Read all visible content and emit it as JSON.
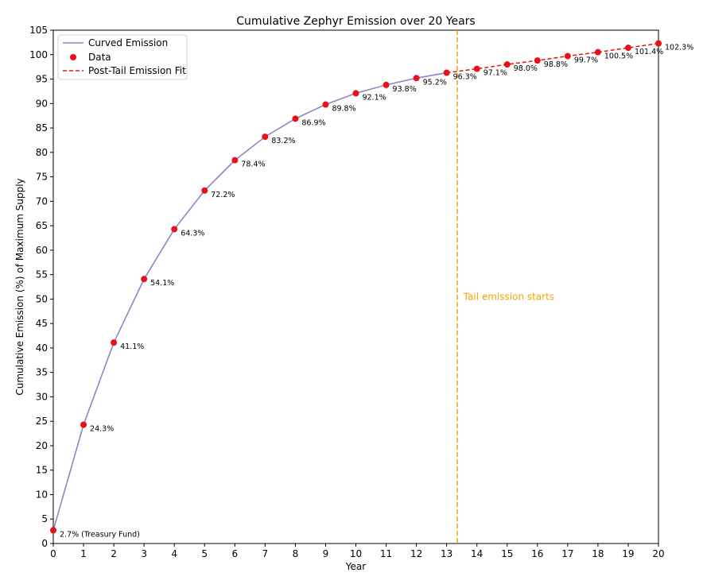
{
  "chart_data": {
    "type": "line",
    "title": "Cumulative Zephyr Emission over 20 Years",
    "xlabel": "Year",
    "ylabel": "Cumulative Emission (%) of Maximum Supply",
    "xlim": [
      0,
      20
    ],
    "ylim": [
      0,
      105
    ],
    "xticks": [
      0,
      1,
      2,
      3,
      4,
      5,
      6,
      7,
      8,
      9,
      10,
      11,
      12,
      13,
      14,
      15,
      16,
      17,
      18,
      19,
      20
    ],
    "yticks": [
      0,
      5,
      10,
      15,
      20,
      25,
      30,
      35,
      40,
      45,
      50,
      55,
      60,
      65,
      70,
      75,
      80,
      85,
      90,
      95,
      100,
      105
    ],
    "grid": false,
    "legend_position": "top-left",
    "series": [
      {
        "name": "Curved Emission",
        "kind": "line",
        "style": "solid",
        "color": "#8c86c6",
        "x": [
          0,
          1,
          2,
          3,
          4,
          5,
          6,
          7,
          8,
          9,
          10,
          11,
          12,
          13
        ],
        "values": [
          2.7,
          24.3,
          41.1,
          54.1,
          64.3,
          72.2,
          78.4,
          83.2,
          86.9,
          89.8,
          92.1,
          93.8,
          95.2,
          96.3
        ]
      },
      {
        "name": "Data",
        "kind": "scatter",
        "color": "#e8111b",
        "x": [
          0,
          1,
          2,
          3,
          4,
          5,
          6,
          7,
          8,
          9,
          10,
          11,
          12,
          13,
          14,
          15,
          16,
          17,
          18,
          19,
          20
        ],
        "values": [
          2.7,
          24.3,
          41.1,
          54.1,
          64.3,
          72.2,
          78.4,
          83.2,
          86.9,
          89.8,
          92.1,
          93.8,
          95.2,
          96.3,
          97.1,
          98.0,
          98.8,
          99.7,
          100.5,
          101.4,
          102.3
        ]
      },
      {
        "name": "Post-Tail Emission Fit",
        "kind": "line",
        "style": "dashed",
        "color": "#e8111b",
        "x": [
          13,
          14,
          15,
          16,
          17,
          18,
          19,
          20
        ],
        "values": [
          96.3,
          97.1,
          98.0,
          98.8,
          99.7,
          100.5,
          101.4,
          102.3
        ]
      }
    ],
    "data_labels": [
      "2.7% (Treasury Fund)",
      "24.3%",
      "41.1%",
      "54.1%",
      "64.3%",
      "72.2%",
      "78.4%",
      "83.2%",
      "86.9%",
      "89.8%",
      "92.1%",
      "93.8%",
      "95.2%",
      "96.3%",
      "97.1%",
      "98.0%",
      "98.8%",
      "99.7%",
      "100.5%",
      "101.4%",
      "102.3%"
    ],
    "vline": {
      "x": 13.35,
      "color": "#f5a300",
      "style": "dashed"
    },
    "annotation": {
      "text": "Tail emission starts",
      "x": 13.5,
      "y": 50,
      "color": "#f5a300"
    }
  }
}
